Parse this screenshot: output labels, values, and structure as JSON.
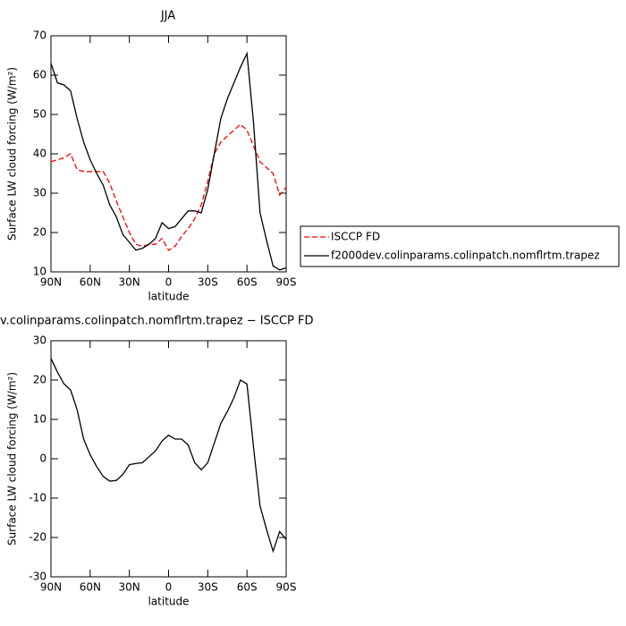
{
  "chart_data": [
    {
      "type": "line",
      "title": "JJA",
      "x_label": "latitude",
      "y_label": "Surface LW cloud forcing (W/m²)",
      "x": [
        90,
        85,
        80,
        75,
        70,
        65,
        60,
        55,
        50,
        45,
        40,
        35,
        30,
        25,
        20,
        15,
        10,
        5,
        0,
        -5,
        -10,
        -15,
        -20,
        -25,
        -30,
        -35,
        -40,
        -45,
        -50,
        -55,
        -60,
        -65,
        -70,
        -75,
        -80,
        -85,
        -90
      ],
      "series": [
        {
          "name": "ISCCP FD",
          "color": "#ff0000",
          "dash": true,
          "values": [
            38,
            38.5,
            39,
            40,
            36,
            35.5,
            35.5,
            35.5,
            35.5,
            32.5,
            28,
            24,
            20,
            17,
            16.5,
            17,
            17,
            18.5,
            15.5,
            16.5,
            19,
            21,
            23.5,
            27,
            33,
            40,
            43,
            44.5,
            46,
            47.5,
            46,
            42,
            38,
            36.5,
            35,
            29.5,
            31.5
          ]
        },
        {
          "name": "f2000dev.colinparams.colinpatch.nomflrtm.trapez",
          "color": "#000000",
          "dash": false,
          "values": [
            63,
            58,
            57.5,
            56,
            49,
            43,
            38.5,
            35,
            32,
            27,
            24,
            19.5,
            17.5,
            15.5,
            16,
            17,
            18.5,
            22.5,
            21,
            21.5,
            23.5,
            25.5,
            25.5,
            25,
            31,
            40,
            49,
            54,
            58,
            62,
            65.5,
            48,
            25,
            18,
            11.5,
            10.5,
            11
          ]
        }
      ],
      "xlim": [
        90,
        -90
      ],
      "xticks": [
        {
          "value": 90,
          "label": "90N"
        },
        {
          "value": 60,
          "label": "60N"
        },
        {
          "value": 30,
          "label": "30N"
        },
        0,
        {
          "value": -30,
          "label": "30S"
        },
        {
          "value": -60,
          "label": "60S"
        },
        {
          "value": -90,
          "label": "90S"
        }
      ],
      "ylim": [
        10,
        70
      ],
      "yticks": [
        10,
        20,
        30,
        40,
        50,
        60,
        70
      ],
      "legend": "right"
    },
    {
      "type": "line",
      "title": "v.colinparams.colinpatch.nomflrtm.trapez − ISCCP FD",
      "x_label": "latitude",
      "y_label": "Surface LW cloud forcing (W/m²)",
      "x": [
        90,
        85,
        80,
        75,
        70,
        65,
        60,
        55,
        50,
        45,
        40,
        35,
        30,
        25,
        20,
        15,
        10,
        5,
        0,
        -5,
        -10,
        -15,
        -20,
        -25,
        -30,
        -35,
        -40,
        -45,
        -50,
        -55,
        -60,
        -65,
        -70,
        -75,
        -80,
        -85,
        -90
      ],
      "color": "#000000",
      "values": [
        25.5,
        22,
        19,
        17.5,
        12.5,
        5,
        1,
        -2,
        -4.5,
        -5.7,
        -5.5,
        -4,
        -1.5,
        -1.2,
        -1,
        0.5,
        2,
        4.5,
        6,
        5,
        5,
        3.5,
        -1,
        -2.8,
        -1,
        4,
        9,
        12,
        15.5,
        20,
        19,
        3,
        -12,
        -18,
        -23.5,
        -18.5,
        -20.5
      ],
      "xlim": [
        90,
        -90
      ],
      "xticks": [
        {
          "value": 90,
          "label": "90N"
        },
        {
          "value": 60,
          "label": "60N"
        },
        {
          "value": 30,
          "label": "30N"
        },
        0,
        {
          "value": -30,
          "label": "30S"
        },
        {
          "value": -60,
          "label": "60S"
        },
        {
          "value": -90,
          "label": "90S"
        }
      ],
      "ylim": [
        -30,
        30
      ],
      "yticks": [
        -30,
        -20,
        -10,
        0,
        10,
        20,
        30
      ]
    }
  ]
}
